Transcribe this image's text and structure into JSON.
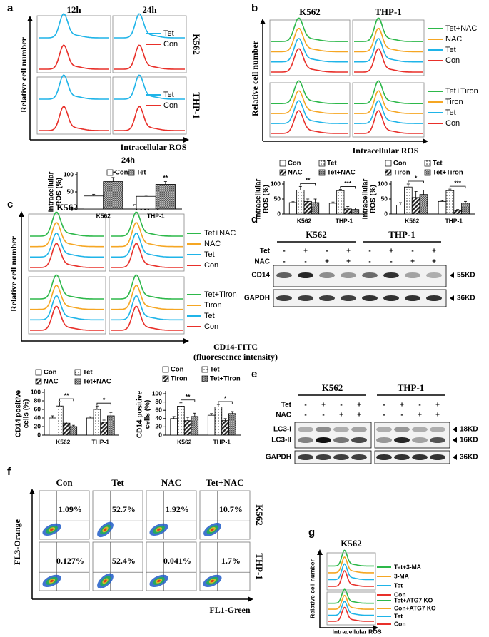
{
  "panel_labels": [
    "a",
    "b",
    "c",
    "d",
    "e",
    "f",
    "g"
  ],
  "histograms": [
    {
      "columns": [
        "12h",
        "24h"
      ],
      "rows": [
        "K562",
        "THP-1"
      ],
      "y_label": "Relative cell number",
      "x_label": "Intracellular  ROS",
      "legends": [
        [
          {
            "name": "Tet",
            "color": "#1fb4e8"
          },
          {
            "name": "Con",
            "color": "#e8302a"
          }
        ],
        [
          {
            "name": "Tet",
            "color": "#1fb4e8"
          },
          {
            "name": "Con",
            "color": "#e8302a"
          }
        ]
      ]
    },
    {
      "columns": [
        "K562",
        "THP-1"
      ],
      "y_label": "Relative cell number",
      "x_label": "Intracellular  ROS",
      "legends": [
        [
          {
            "name": "Tet+NAC",
            "color": "#2db84a"
          },
          {
            "name": "NAC",
            "color": "#f5a623"
          },
          {
            "name": "Tet",
            "color": "#1fb4e8"
          },
          {
            "name": "Con",
            "color": "#e8302a"
          }
        ],
        [
          {
            "name": "Tet+Tiron",
            "color": "#2db84a"
          },
          {
            "name": "Tiron",
            "color": "#f5a623"
          },
          {
            "name": "Tet",
            "color": "#1fb4e8"
          },
          {
            "name": "Con",
            "color": "#e8302a"
          }
        ]
      ]
    },
    {
      "columns": [
        "K562",
        "THP-1"
      ],
      "y_label": "Relative cell number",
      "x_label": [
        "CD14-FITC",
        "(fluorescence intensity)"
      ],
      "legends": [
        [
          {
            "name": "Tet+NAC",
            "color": "#2db84a"
          },
          {
            "name": "NAC",
            "color": "#f5a623"
          },
          {
            "name": "Tet",
            "color": "#1fb4e8"
          },
          {
            "name": "Con",
            "color": "#e8302a"
          }
        ],
        [
          {
            "name": "Tet+Tiron",
            "color": "#2db84a"
          },
          {
            "name": "Tiron",
            "color": "#f5a623"
          },
          {
            "name": "Tet",
            "color": "#1fb4e8"
          },
          {
            "name": "Con",
            "color": "#e8302a"
          }
        ]
      ]
    },
    {
      "columns": [
        "K562"
      ],
      "y_label": "Relative cell number",
      "x_label": "Intracellular  ROS",
      "legends": [
        [
          {
            "name": "Tet+3-MA",
            "color": "#2db84a"
          },
          {
            "name": "3-MA",
            "color": "#f5a623"
          },
          {
            "name": "Tet",
            "color": "#1fb4e8"
          },
          {
            "name": "Con",
            "color": "#e8302a"
          }
        ],
        [
          {
            "name": "Tet+ATG7 KO",
            "color": "#2db84a"
          },
          {
            "name": "Con+ATG7 KO",
            "color": "#f5a623"
          },
          {
            "name": "Tet",
            "color": "#1fb4e8"
          },
          {
            "name": "Con",
            "color": "#e8302a"
          }
        ]
      ]
    }
  ],
  "chart_data": [
    {
      "type": "bar",
      "title": "24h",
      "y_label": [
        "Intracellular",
        "ROS (%)"
      ],
      "categories": [
        "K562",
        "THP-1"
      ],
      "series": [
        {
          "name": "Con",
          "pattern": "none",
          "values": [
            38,
            37
          ],
          "errors": [
            5,
            3
          ]
        },
        {
          "name": "Tet",
          "pattern": "grid",
          "values": [
            80,
            72
          ],
          "errors": [
            12,
            8
          ]
        }
      ],
      "annotations": [
        "**",
        "**"
      ],
      "ylim": [
        0,
        100
      ],
      "yticks": [
        0,
        50,
        100
      ]
    },
    {
      "type": "bar",
      "y_label": [
        "Intracellular",
        "ROS (%)"
      ],
      "categories": [
        "K562",
        "THP-1"
      ],
      "series": [
        {
          "name": "Con",
          "pattern": "none",
          "values": [
            38,
            36
          ],
          "errors": [
            3,
            4
          ]
        },
        {
          "name": "Tet",
          "pattern": "dots",
          "values": [
            80,
            78
          ],
          "errors": [
            12,
            4
          ]
        },
        {
          "name": "NAC",
          "pattern": "hatch",
          "values": [
            42,
            17
          ],
          "errors": [
            8,
            8
          ]
        },
        {
          "name": "Tet+NAC",
          "pattern": "grid",
          "values": [
            38,
            15
          ],
          "errors": [
            12,
            5
          ]
        }
      ],
      "annotations": [
        "**",
        "***"
      ],
      "ylim": [
        0,
        100
      ],
      "yticks": [
        0,
        50,
        100
      ]
    },
    {
      "type": "bar",
      "y_label": [
        "Intracellular",
        "ROS (%)"
      ],
      "categories": [
        "K562",
        "THP-1"
      ],
      "series": [
        {
          "name": "Con",
          "pattern": "none",
          "values": [
            30,
            42
          ],
          "errors": [
            8,
            3
          ]
        },
        {
          "name": "Tet",
          "pattern": "dots",
          "values": [
            90,
            78
          ],
          "errors": [
            10,
            5
          ]
        },
        {
          "name": "Tiron",
          "pattern": "hatch",
          "values": [
            55,
            12
          ],
          "errors": [
            20,
            3
          ]
        },
        {
          "name": "Tet+Tiron",
          "pattern": "grid",
          "values": [
            65,
            36
          ],
          "errors": [
            15,
            6
          ]
        }
      ],
      "annotations": [
        "*",
        "***"
      ],
      "ylim": [
        0,
        100
      ],
      "yticks": [
        0,
        50,
        100
      ]
    },
    {
      "type": "bar",
      "y_label": [
        "CD14 positive",
        "cells (%)"
      ],
      "categories": [
        "K562",
        "THP-1"
      ],
      "series": [
        {
          "name": "Con",
          "pattern": "none",
          "values": [
            40,
            40
          ],
          "errors": [
            5,
            3
          ]
        },
        {
          "name": "Tet",
          "pattern": "dots",
          "values": [
            68,
            60
          ],
          "errors": [
            10,
            8
          ]
        },
        {
          "name": "NAC",
          "pattern": "hatch",
          "values": [
            28,
            30
          ],
          "errors": [
            3,
            5
          ]
        },
        {
          "name": "Tet+NAC",
          "pattern": "grid",
          "values": [
            20,
            45
          ],
          "errors": [
            3,
            8
          ]
        }
      ],
      "annotations": [
        "**",
        "*"
      ],
      "ylim": [
        0,
        100
      ],
      "yticks": [
        0,
        20,
        40,
        60,
        80,
        100
      ]
    },
    {
      "type": "bar",
      "y_label": [
        "CD14 positive",
        "cells (%)"
      ],
      "categories": [
        "K562",
        "THP-1"
      ],
      "series": [
        {
          "name": "Con",
          "pattern": "none",
          "values": [
            40,
            48
          ],
          "errors": [
            5,
            4
          ]
        },
        {
          "name": "Tet",
          "pattern": "dots",
          "values": [
            70,
            68
          ],
          "errors": [
            8,
            6
          ]
        },
        {
          "name": "Tiron",
          "pattern": "hatch",
          "values": [
            35,
            35
          ],
          "errors": [
            8,
            5
          ]
        },
        {
          "name": "Tet+Tiron",
          "pattern": "grid",
          "values": [
            45,
            52
          ],
          "errors": [
            8,
            5
          ]
        }
      ],
      "annotations": [
        "**",
        "*"
      ],
      "ylim": [
        0,
        100
      ],
      "yticks": [
        0,
        20,
        40,
        60,
        80,
        100
      ]
    }
  ],
  "blots": [
    {
      "cell_lines": [
        "K562",
        "THP-1"
      ],
      "treatments": [
        {
          "name": "Tet",
          "signs": [
            "-",
            "+",
            "-",
            "+",
            "-",
            "+",
            "-",
            "+"
          ]
        },
        {
          "name": "NAC",
          "signs": [
            "-",
            "-",
            "+",
            "+",
            "-",
            "-",
            "+",
            "+"
          ]
        }
      ],
      "bands": [
        {
          "name": "CD14",
          "size": "55KD"
        },
        {
          "name": "GAPDH",
          "size": "36KD"
        }
      ]
    },
    {
      "cell_lines": [
        "K562",
        "THP-1"
      ],
      "treatments": [
        {
          "name": "Tet",
          "signs": [
            "-",
            "+",
            "-",
            "+",
            "-",
            "+",
            "-",
            "+"
          ]
        },
        {
          "name": "NAC",
          "signs": [
            "-",
            "-",
            "+",
            "+",
            "-",
            "-",
            "+",
            "+"
          ]
        }
      ],
      "bands": [
        {
          "name": "LC3-I",
          "size": "18KD"
        },
        {
          "name": "LC3-II",
          "size": "16KD"
        },
        {
          "name": "GAPDH",
          "size": "36KD"
        }
      ]
    }
  ],
  "flow": {
    "columns": [
      "Con",
      "Tet",
      "NAC",
      "Tet+NAC"
    ],
    "rows": [
      "K562",
      "THP-1"
    ],
    "percentages": [
      [
        "1.09%",
        "52.7%",
        "1.92%",
        "10.7%"
      ],
      [
        "0.127%",
        "52.4%",
        "0.041%",
        "1.7%"
      ]
    ],
    "y_label": "FL3-Orange",
    "x_label": "FL1-Green"
  }
}
